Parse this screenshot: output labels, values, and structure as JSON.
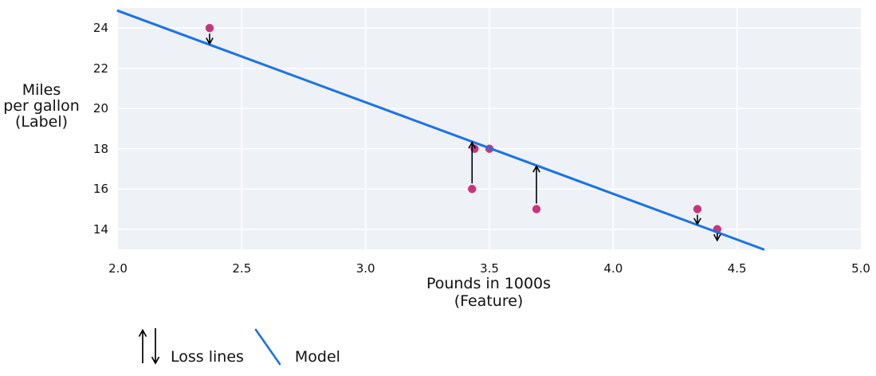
{
  "axis_labels": {
    "y_lines": [
      "Miles",
      "per gallon",
      "(Label)"
    ],
    "x_lines": [
      "Pounds in 1000s",
      "(Feature)"
    ]
  },
  "legend": {
    "loss_label": "Loss lines",
    "model_label": "Model"
  },
  "colors": {
    "model_line": "#1a73e8",
    "data_point": "#c9357c",
    "loss_arrow": "#000000",
    "plot_background": "#eef1f6",
    "gridline": "#ffffff",
    "text": "#111111"
  },
  "chart_data": {
    "type": "scatter",
    "title": "",
    "xlabel": "Pounds in 1000s (Feature)",
    "ylabel": "Miles per gallon (Label)",
    "xlim": [
      2.0,
      5.0
    ],
    "ylim": [
      13,
      25
    ],
    "x_ticks": [
      "2.0",
      "2.5",
      "3.0",
      "3.5",
      "4.0",
      "4.5",
      "5.0"
    ],
    "y_ticks": [
      14,
      16,
      18,
      20,
      22,
      24
    ],
    "grid": true,
    "legend_position": "below-plot-left",
    "points": [
      {
        "x": 2.37,
        "y": 24,
        "loss_arrow": true
      },
      {
        "x": 3.43,
        "y": 16,
        "loss_arrow": true
      },
      {
        "x": 3.44,
        "y": 18,
        "loss_arrow": false
      },
      {
        "x": 3.5,
        "y": 18,
        "loss_arrow": false
      },
      {
        "x": 3.69,
        "y": 15,
        "loss_arrow": true
      },
      {
        "x": 4.34,
        "y": 15,
        "loss_arrow": true
      },
      {
        "x": 4.42,
        "y": 14,
        "loss_arrow": true
      }
    ],
    "model_line": {
      "type": "linear",
      "slope": -4.55,
      "intercept": 33.96
    },
    "legend_entries": [
      "Loss lines",
      "Model"
    ]
  }
}
